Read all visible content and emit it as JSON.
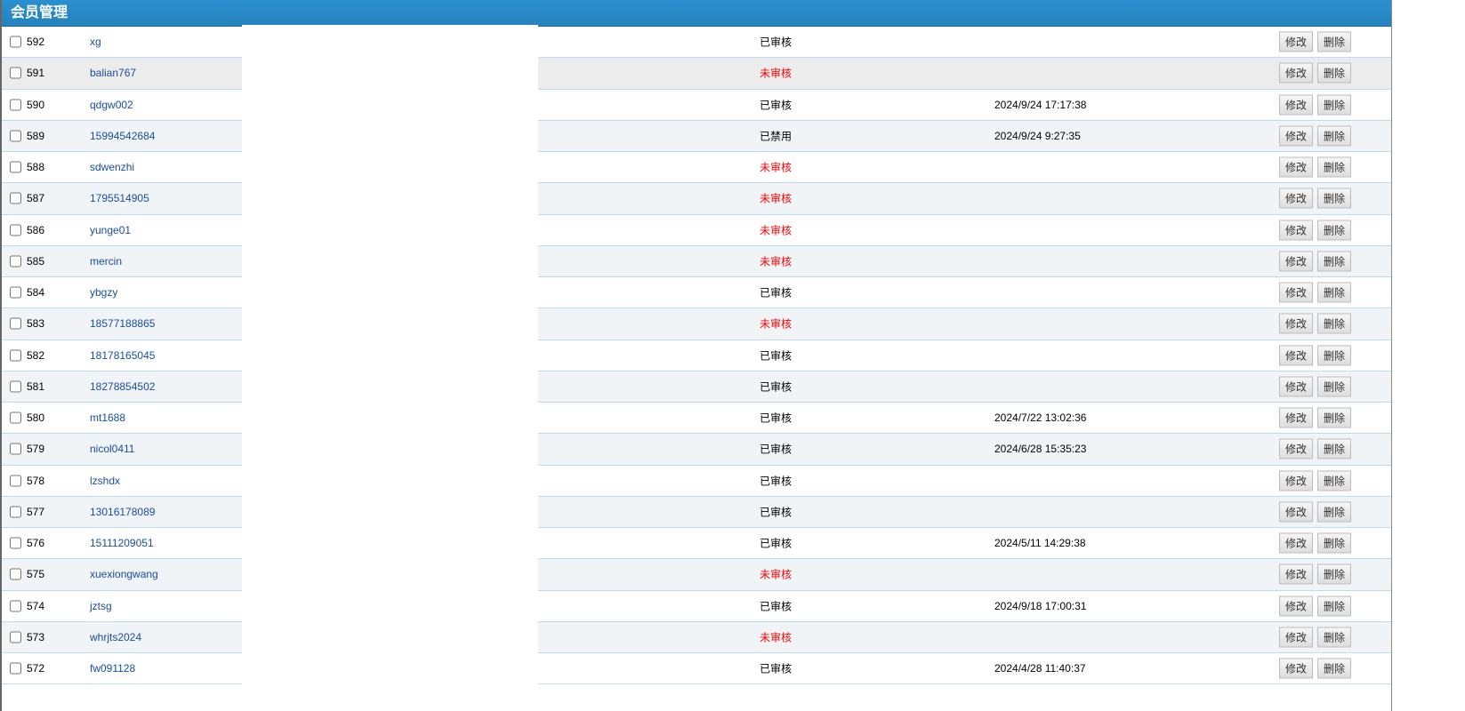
{
  "header": {
    "title": "会员管理"
  },
  "colors": {
    "header": "#2583bd",
    "link": "#1a4da0",
    "unapproved": "#ff0000",
    "row_alt": "#f0f4f7",
    "row_border": "#bcdcf0"
  },
  "actions": {
    "edit_label": "修改",
    "delete_label": "删除"
  },
  "rows": [
    {
      "id": "592",
      "name": "xg",
      "status": "已审核",
      "date": ""
    },
    {
      "id": "591",
      "name": "balian767",
      "status": "未审核",
      "date": ""
    },
    {
      "id": "590",
      "name": "qdgw002",
      "status": "已审核",
      "date": "2024/9/24 17:17:38"
    },
    {
      "id": "589",
      "name": "15994542684",
      "status": "已禁用",
      "date": "2024/9/24 9:27:35"
    },
    {
      "id": "588",
      "name": "sdwenzhi",
      "status": "未审核",
      "date": ""
    },
    {
      "id": "587",
      "name": "1795514905",
      "status": "未审核",
      "date": ""
    },
    {
      "id": "586",
      "name": "yunge01",
      "status": "未审核",
      "date": ""
    },
    {
      "id": "585",
      "name": "mercin",
      "status": "未审核",
      "date": ""
    },
    {
      "id": "584",
      "name": "ybgzy",
      "status": "已审核",
      "date": ""
    },
    {
      "id": "583",
      "name": "18577188865",
      "status": "未审核",
      "date": ""
    },
    {
      "id": "582",
      "name": "18178165045",
      "status": "已审核",
      "date": ""
    },
    {
      "id": "581",
      "name": "18278854502",
      "status": "已审核",
      "date": ""
    },
    {
      "id": "580",
      "name": "mt1688",
      "status": "已审核",
      "date": "2024/7/22 13:02:36"
    },
    {
      "id": "579",
      "name": "nicol0411",
      "status": "已审核",
      "date": "2024/6/28 15:35:23"
    },
    {
      "id": "578",
      "name": "lzshdx",
      "status": "已审核",
      "date": ""
    },
    {
      "id": "577",
      "name": "13016178089",
      "status": "已审核",
      "date": ""
    },
    {
      "id": "576",
      "name": "15111209051",
      "status": "已审核",
      "date": "2024/5/11 14:29:38"
    },
    {
      "id": "575",
      "name": "xuexiongwang",
      "status": "未审核",
      "date": ""
    },
    {
      "id": "574",
      "name": "jztsg",
      "status": "已审核",
      "date": "2024/9/18 17:00:31"
    },
    {
      "id": "573",
      "name": "whrjts2024",
      "status": "未审核",
      "date": ""
    },
    {
      "id": "572",
      "name": "fw091128",
      "status": "已审核",
      "date": "2024/4/28 11:40:37"
    }
  ]
}
